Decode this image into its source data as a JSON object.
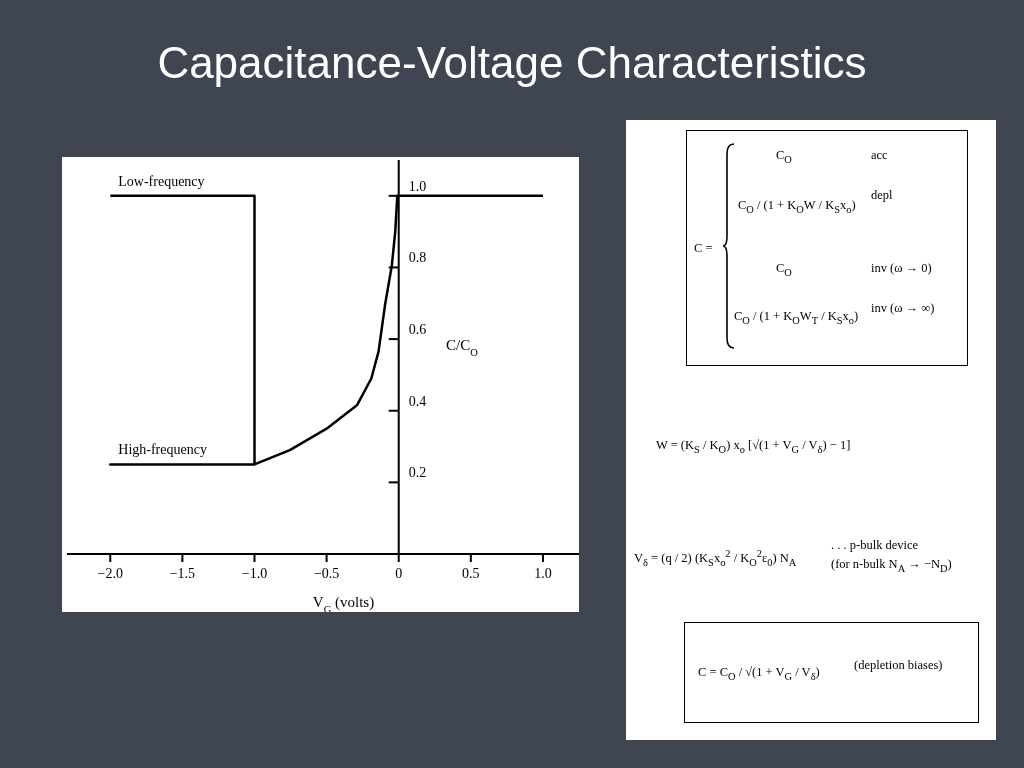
{
  "chart_data": {
    "type": "line",
    "title": "Capacitance-Voltage Characteristics",
    "xlabel": "V$_{G}$ (volts)",
    "ylabel": "C/C$_{O}$",
    "xlim": [
      -2.3,
      1.25
    ],
    "ylim": [
      0,
      1.1
    ],
    "xticks": [
      {
        "value": -2.0,
        "label": "−2.0"
      },
      {
        "value": -1.5,
        "label": "−1.5"
      },
      {
        "value": -1.0,
        "label": "−1.0"
      },
      {
        "value": -0.5,
        "label": "−0.5"
      },
      {
        "value": 0,
        "label": "0"
      },
      {
        "value": 0.5,
        "label": "0.5"
      },
      {
        "value": 1.0,
        "label": "1.0"
      }
    ],
    "yticks": [
      {
        "value": 0.2,
        "label": "0.2"
      },
      {
        "value": 0.4,
        "label": "0.4"
      },
      {
        "value": 0.6,
        "label": "0.6"
      },
      {
        "value": 0.8,
        "label": "0.8"
      },
      {
        "value": 1.0,
        "label": "1.0"
      }
    ],
    "series": [
      {
        "color": "#000000",
        "x": [
          -2.0,
          -1.0,
          -1.0,
          -2.0,
          -1.0,
          -0.755,
          -0.5,
          -0.29,
          -0.19,
          -0.14,
          -0.095,
          -0.048,
          -0.024,
          -0.01,
          1.0
        ],
        "values": [
          1.0,
          1.0,
          0.25,
          0.25,
          0.25,
          0.29,
          0.35,
          0.415,
          0.49,
          0.565,
          0.695,
          0.805,
          0.9,
          1.0,
          1.0
        ]
      }
    ],
    "marker": "none",
    "line_style": "solid",
    "annotations": [
      {
        "text": "Low-frequency",
        "x": -2.0,
        "y": 1.0
      },
      {
        "text": "High-frequency",
        "x": -2.0,
        "y": 0.25
      },
      "C =",
      "C$_{O}$",
      "acc",
      "C$_{O}$ / (1 + K$_{O}$W / K$_{S}$x$_{o}$)",
      "depl",
      "C$_{O}$",
      "inv (ω → 0)",
      "C$_{O}$ / (1 + K$_{O}$W$_{T}$ / K$_{S}$x$_{o}$)",
      "inv (ω → ∞)",
      "W = (K$_{S}$ / K$_{O}$) x$_{o}$ [√(1 + V$_{G}$ / V$_{δ}$) − 1]",
      "V$_{δ}$ = (q / 2) (K$_{S}$x$_{o}$$^{2}$ / K$_{O}$$^{2}$ε$_{0}$) N$_{A}$",
      ". . . p-bulk device",
      "(for n-bulk N$_{A}$ → −N$_{D}$)",
      "C = C$_{O}$ / √(1 + V$_{G}$ / V$_{δ}$)",
      "(depletion biases)"
    ]
  }
}
